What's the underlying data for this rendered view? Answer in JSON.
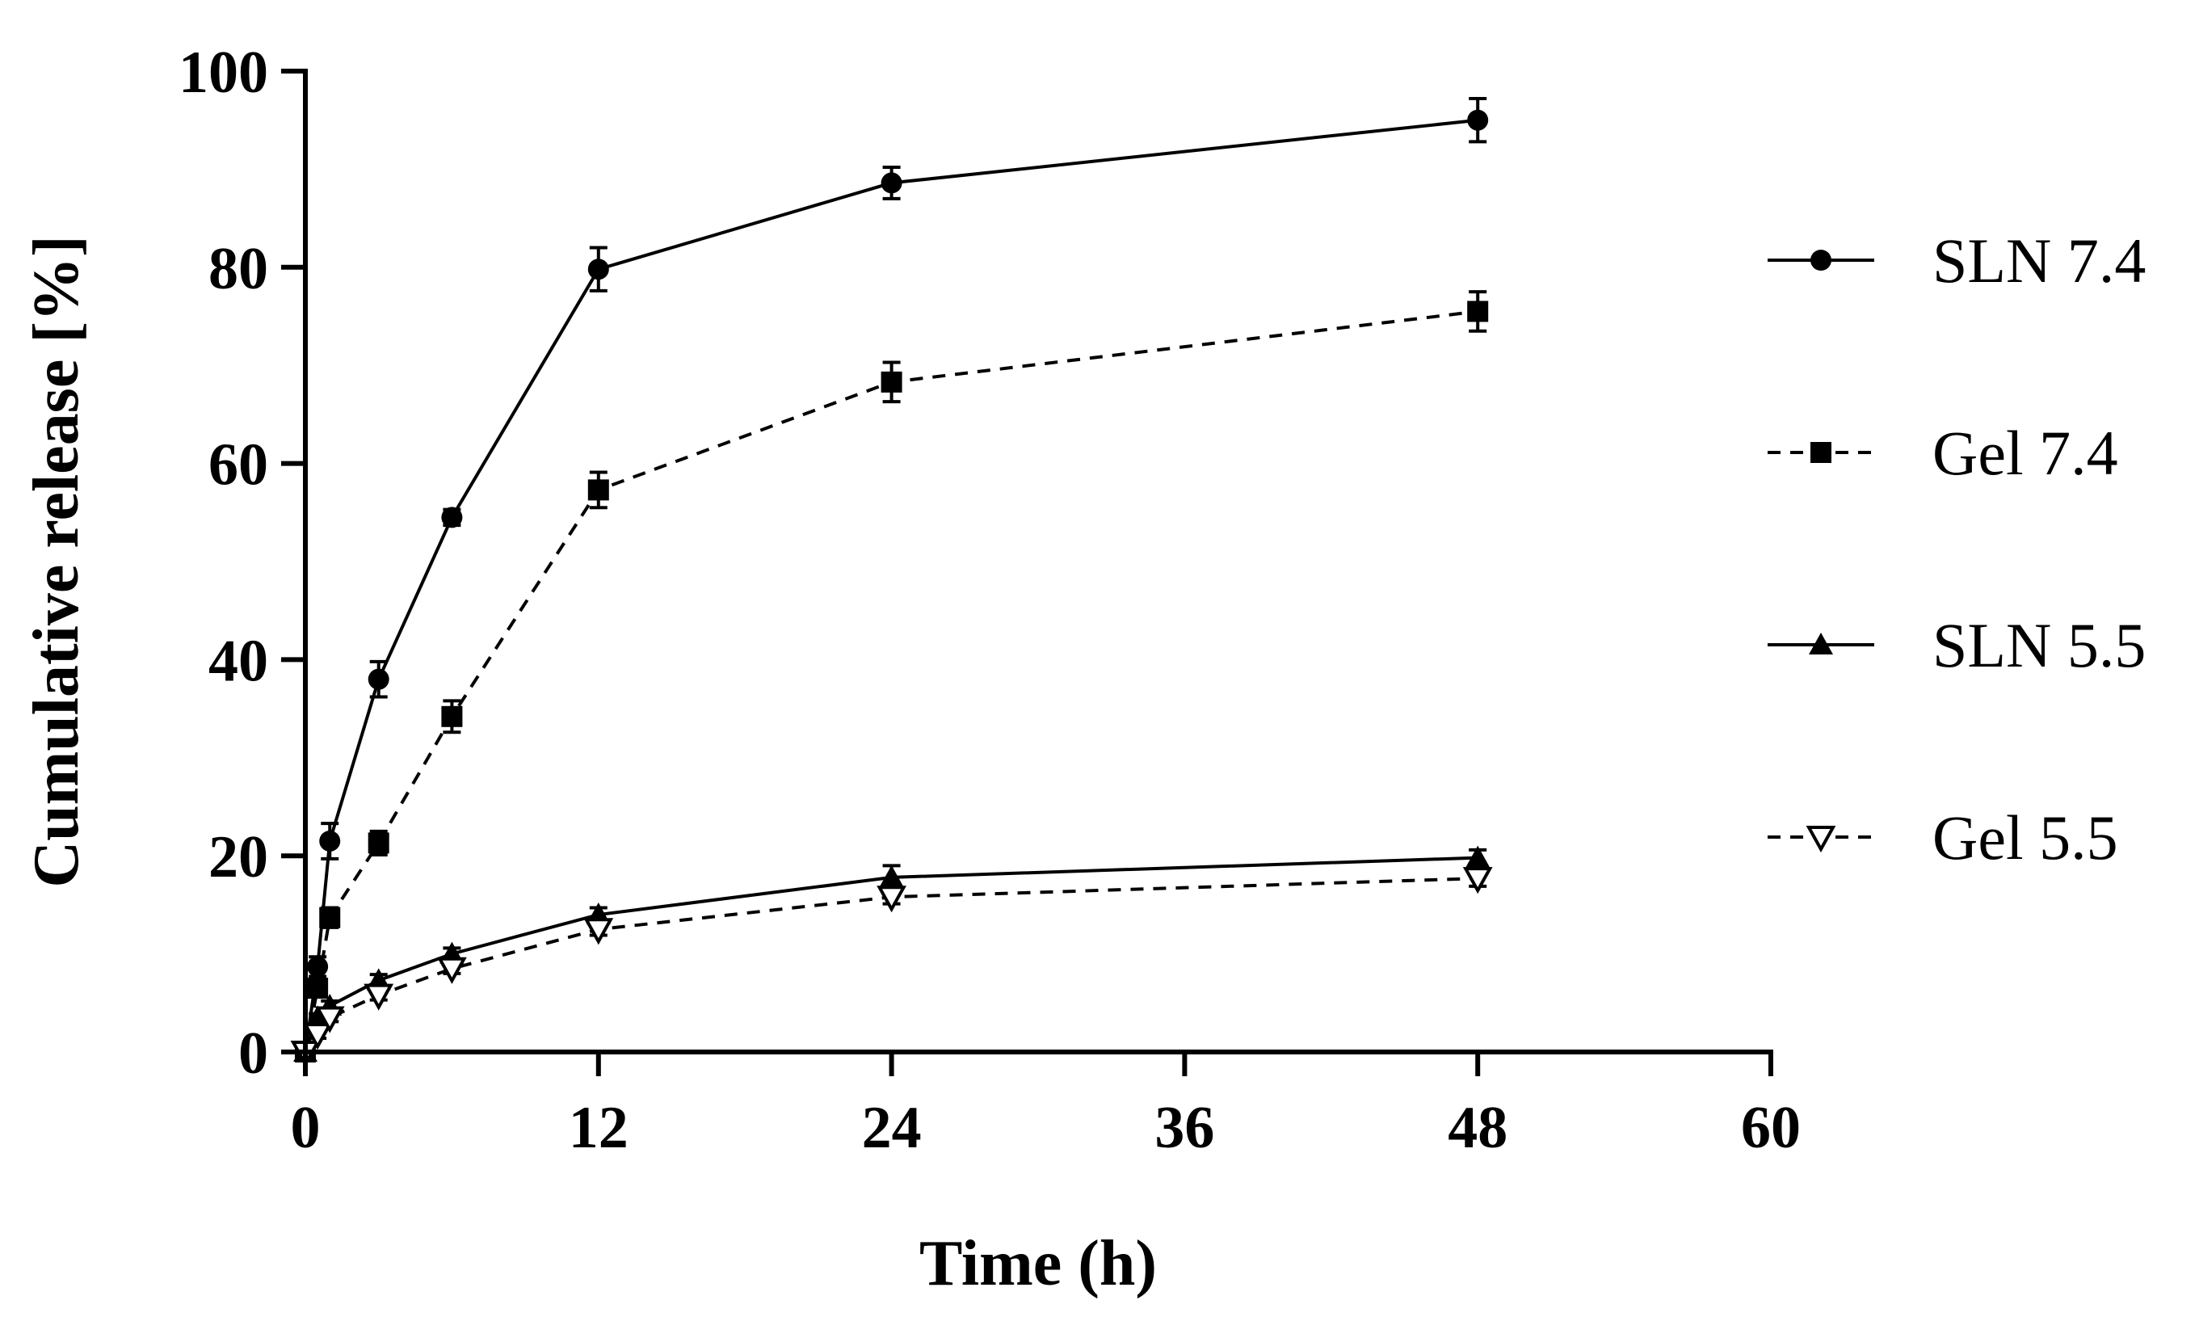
{
  "chart_data": {
    "type": "line",
    "title": "",
    "xlabel": "Time (h)",
    "ylabel": "Cumulative release [%]",
    "xlim": [
      0,
      60
    ],
    "ylim": [
      0,
      100
    ],
    "xticks": [
      "0",
      "12",
      "24",
      "36",
      "48",
      "60"
    ],
    "yticks": [
      "0",
      "20",
      "40",
      "60",
      "80",
      "100"
    ],
    "grid": false,
    "legend_position": "right",
    "x": [
      0,
      0.5,
      1,
      3,
      6,
      12,
      24,
      48
    ],
    "series": [
      {
        "name": "SLN 7.4",
        "marker": "circle",
        "dash": "solid",
        "values": [
          0,
          8.7,
          21.5,
          38,
          54.5,
          79.8,
          88.6,
          95
        ],
        "errors": [
          0.4,
          1.0,
          1.8,
          1.8,
          0.8,
          2.2,
          1.6,
          2.2
        ]
      },
      {
        "name": "Gel 7.4",
        "marker": "square",
        "dash": "dashed",
        "values": [
          0,
          6.5,
          13.7,
          21.3,
          34.2,
          57.3,
          68.3,
          75.5
        ],
        "errors": [
          0.3,
          0.8,
          1.0,
          1.2,
          1.6,
          1.8,
          2.0,
          2.0
        ]
      },
      {
        "name": "SLN 5.5",
        "marker": "triangle",
        "dash": "solid",
        "values": [
          0,
          3.5,
          4.7,
          7.3,
          10,
          14,
          17.8,
          19.8
        ],
        "errors": [
          0.2,
          0.4,
          0.5,
          0.6,
          0.6,
          0.7,
          1.2,
          0.8
        ]
      },
      {
        "name": "Gel 5.5",
        "marker": "triangle-down-open",
        "dash": "dashed",
        "values": [
          0,
          1.8,
          3.5,
          5.8,
          8.5,
          12.5,
          15.8,
          17.7
        ],
        "errors": [
          0.2,
          0.4,
          0.4,
          0.5,
          0.5,
          0.6,
          0.7,
          0.8
        ]
      }
    ]
  }
}
